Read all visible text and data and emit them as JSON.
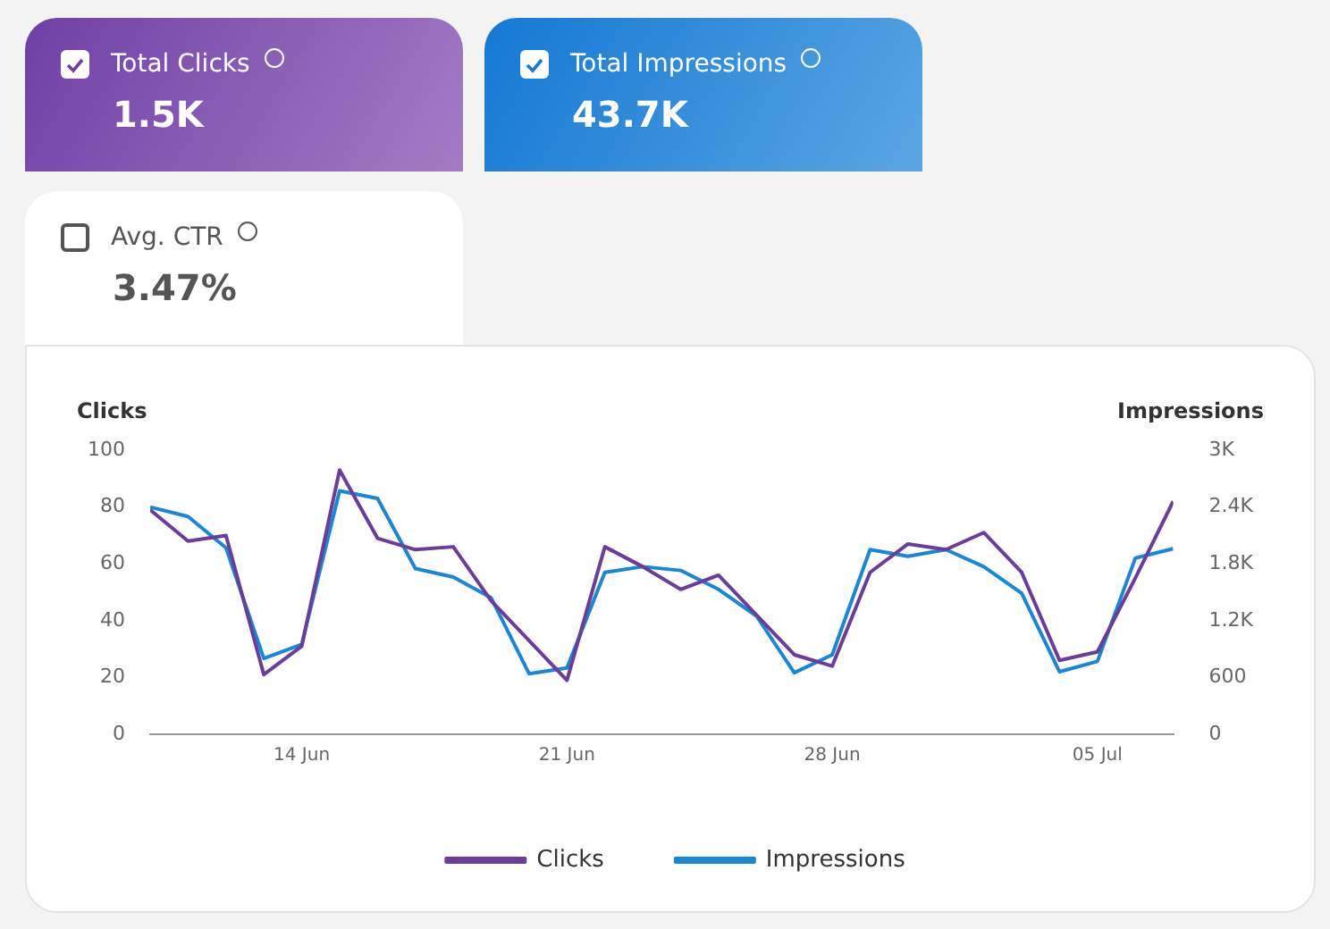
{
  "chart_data": [
    {
      "type": "other",
      "annotations": [
        "Total Clicks",
        "1.5K",
        "Total Impressions",
        "43.7K",
        "Avg. CTR",
        "3.47%"
      ]
    },
    {
      "type": "line",
      "ylabel": "Clicks",
      "y2label": "Impressions",
      "x": [
        "--06-10",
        "--06-11",
        "--06-12",
        "--06-13",
        "--06-14",
        "--06-15",
        "--06-16",
        "--06-17",
        "--06-18",
        "--06-19",
        "--06-20",
        "--06-21",
        "--06-22",
        "--06-23",
        "--06-24",
        "--06-25",
        "--06-26",
        "--06-27",
        "--06-28",
        "--06-29",
        "--06-30",
        "--07-01",
        "--07-02",
        "--07-03",
        "--07-04",
        "--07-05",
        "--07-06",
        "--07-07"
      ],
      "series": [
        {
          "name": "Clicks",
          "color": "#6a3d9a",
          "values": [
            79,
            68,
            70,
            21,
            31,
            93,
            69,
            65,
            66,
            47,
            33,
            19,
            66,
            59,
            51,
            56,
            42,
            28,
            24,
            57,
            67,
            65,
            71,
            57,
            26,
            29,
            55,
            82
          ]
        },
        {
          "name": "Impressions",
          "color": "#1a87d6",
          "axis": "y2",
          "values": [
            2400,
            2300,
            1970,
            800,
            950,
            2570,
            2490,
            1750,
            1660,
            1440,
            640,
            700,
            1710,
            1770,
            1730,
            1530,
            1250,
            650,
            840,
            1950,
            1880,
            1950,
            1770,
            1490,
            660,
            770,
            1860,
            1960
          ]
        }
      ],
      "xlim": [
        "--06-10",
        "--07-07"
      ],
      "xticks": [
        {
          "value": "--06-14",
          "label": "14 Jun"
        },
        {
          "value": "--06-21",
          "label": "21 Jun"
        },
        {
          "value": "--06-28",
          "label": "28 Jun"
        },
        {
          "value": "--07-05",
          "label": "05 Jul"
        }
      ],
      "ylim": [
        0,
        100
      ],
      "yticks": [
        0,
        20,
        40,
        60,
        80,
        100
      ],
      "y2lim": [
        0,
        3000
      ],
      "y2ticks": [
        0,
        600,
        {
          "value": 1200,
          "label": "1.2K"
        },
        {
          "value": 1800,
          "label": "1.8K"
        },
        {
          "value": 2400,
          "label": "2.4K"
        },
        {
          "value": 3000,
          "label": "3K"
        }
      ],
      "marker": "none",
      "line_style": "solid",
      "legend": "bottom"
    }
  ]
}
